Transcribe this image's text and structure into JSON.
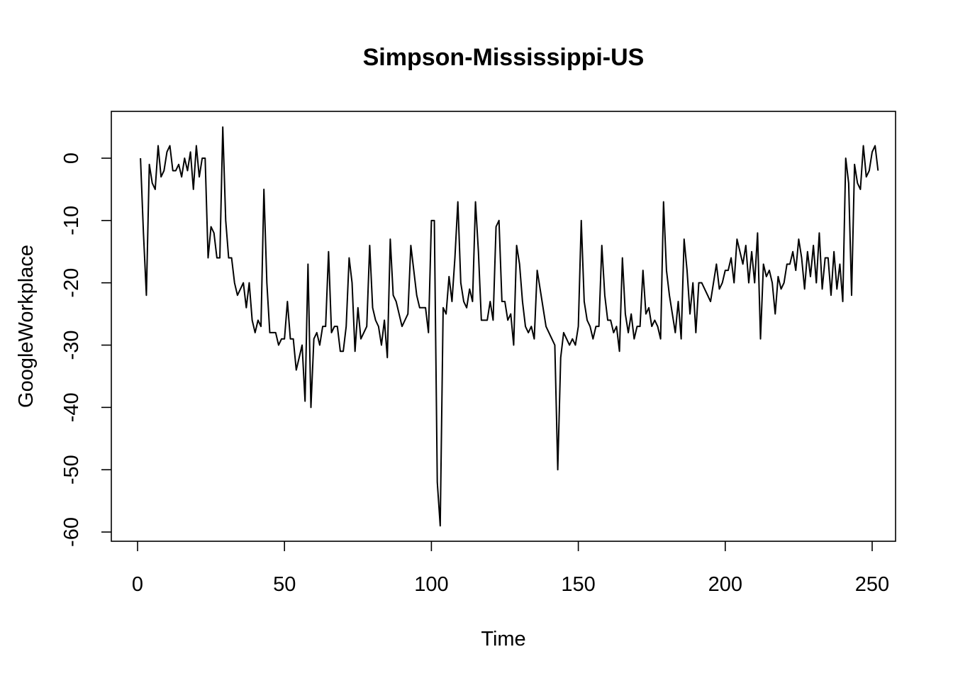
{
  "chart_data": {
    "type": "line",
    "title": "Simpson-Mississippi-US",
    "xlabel": "Time",
    "ylabel": "GoogleWorkplace",
    "xlim": [
      0,
      250
    ],
    "ylim": [
      -60,
      5
    ],
    "xticks": [
      0,
      50,
      100,
      150,
      200,
      250
    ],
    "yticks": [
      0,
      -10,
      -20,
      -30,
      -40,
      -50,
      -60
    ],
    "xtick_labels": [
      "0",
      "50",
      "100",
      "150",
      "200",
      "250"
    ],
    "ytick_labels": [
      "0",
      "-10",
      "-20",
      "-30",
      "-40",
      "-50",
      "-60"
    ],
    "grid": false,
    "legend": "none",
    "x_start": 1,
    "x_step": 1,
    "series": [
      {
        "color": "#000000",
        "values": [
          0,
          -12,
          -22,
          -1,
          -4,
          -5,
          2,
          -3,
          -2,
          1,
          2,
          -2,
          -2,
          -1,
          -3,
          0,
          -2,
          1,
          -5,
          2,
          -3,
          0,
          0,
          -16,
          -11,
          -12,
          -16,
          -16,
          5,
          -10,
          -16,
          -16,
          -20,
          -22,
          -21,
          -20,
          -24,
          -20,
          -26,
          -28,
          -26,
          -27,
          -5,
          -20,
          -28,
          -28,
          -28,
          -30,
          -29,
          -29,
          -23,
          -29,
          -29,
          -34,
          -32,
          -30,
          -39,
          -17,
          -40,
          -29,
          -28,
          -30,
          -27,
          -27,
          -15,
          -28,
          -27,
          -27,
          -31,
          -31,
          -27,
          -16,
          -20,
          -31,
          -24,
          -29,
          -28,
          -27,
          -14,
          -24,
          -26,
          -27,
          -30,
          -26,
          -32,
          -13,
          -22,
          -23,
          -25,
          -27,
          -26,
          -25,
          -14,
          -18,
          -22,
          -24,
          -24,
          -24,
          -28,
          -10,
          -10,
          -52,
          -59,
          -24,
          -25,
          -19,
          -23,
          -16,
          -7,
          -20,
          -23,
          -24,
          -21,
          -23,
          -7,
          -15,
          -26,
          -26,
          -26,
          -23,
          -26,
          -11,
          -10,
          -23,
          -23,
          -26,
          -25,
          -30,
          -14,
          -17,
          -23,
          -27,
          -28,
          -27,
          -29,
          -18,
          -21,
          -24,
          -27,
          -28,
          -29,
          -30,
          -50,
          -32,
          -28,
          -29,
          -30,
          -29,
          -30,
          -27,
          -10,
          -23,
          -26,
          -27,
          -29,
          -27,
          -27,
          -14,
          -22,
          -26,
          -26,
          -28,
          -27,
          -31,
          -16,
          -25,
          -28,
          -25,
          -29,
          -27,
          -27,
          -18,
          -25,
          -24,
          -27,
          -26,
          -27,
          -29,
          -7,
          -18,
          -22,
          -25,
          -28,
          -23,
          -29,
          -13,
          -18,
          -25,
          -20,
          -28,
          -20,
          -20,
          -21,
          -22,
          -23,
          -20,
          -17,
          -21,
          -20,
          -18,
          -18,
          -16,
          -20,
          -13,
          -15,
          -17,
          -14,
          -20,
          -15,
          -20,
          -12,
          -29,
          -17,
          -19,
          -18,
          -20,
          -25,
          -19,
          -21,
          -20,
          -17,
          -17,
          -15,
          -18,
          -13,
          -16,
          -21,
          -15,
          -19,
          -14,
          -20,
          -12,
          -21,
          -16,
          -16,
          -22,
          -15,
          -21,
          -17,
          -23,
          0,
          -4,
          -22,
          -1,
          -4,
          -5,
          2,
          -3,
          -2,
          1,
          2,
          -2
        ]
      }
    ]
  }
}
